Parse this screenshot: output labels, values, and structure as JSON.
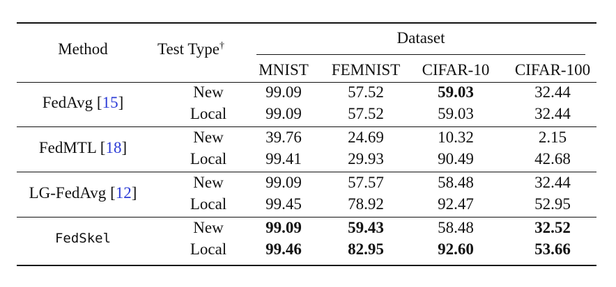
{
  "table": {
    "header": {
      "method": "Method",
      "test_type": "Test Type",
      "test_type_mark": "†",
      "dataset": "Dataset",
      "datasets": [
        "MNIST",
        "FEMNIST",
        "CIFAR-10",
        "CIFAR-100"
      ]
    },
    "groups": [
      {
        "method": "FedAvg",
        "cite": "15",
        "rows": [
          {
            "type": "New",
            "values": [
              "99.09",
              "57.52",
              "59.03",
              "32.44"
            ]
          },
          {
            "type": "Local",
            "values": [
              "99.09",
              "57.52",
              "59.03",
              "32.44"
            ]
          }
        ]
      },
      {
        "method": "FedMTL",
        "cite": "18",
        "rows": [
          {
            "type": "New",
            "values": [
              "39.76",
              "24.69",
              "10.32",
              "2.15"
            ]
          },
          {
            "type": "Local",
            "values": [
              "99.41",
              "29.93",
              "90.49",
              "42.68"
            ]
          }
        ]
      },
      {
        "method": "LG-FedAvg",
        "cite": "12",
        "rows": [
          {
            "type": "New",
            "values": [
              "99.09",
              "57.57",
              "58.48",
              "32.44"
            ]
          },
          {
            "type": "Local",
            "values": [
              "99.45",
              "78.92",
              "92.47",
              "52.95"
            ]
          }
        ]
      },
      {
        "method": "FedSkel",
        "cite": "",
        "rows": [
          {
            "type": "New",
            "values": [
              "99.09",
              "59.43",
              "58.48",
              "32.52"
            ]
          },
          {
            "type": "Local",
            "values": [
              "99.46",
              "82.95",
              "92.60",
              "53.66"
            ]
          }
        ]
      }
    ]
  }
}
